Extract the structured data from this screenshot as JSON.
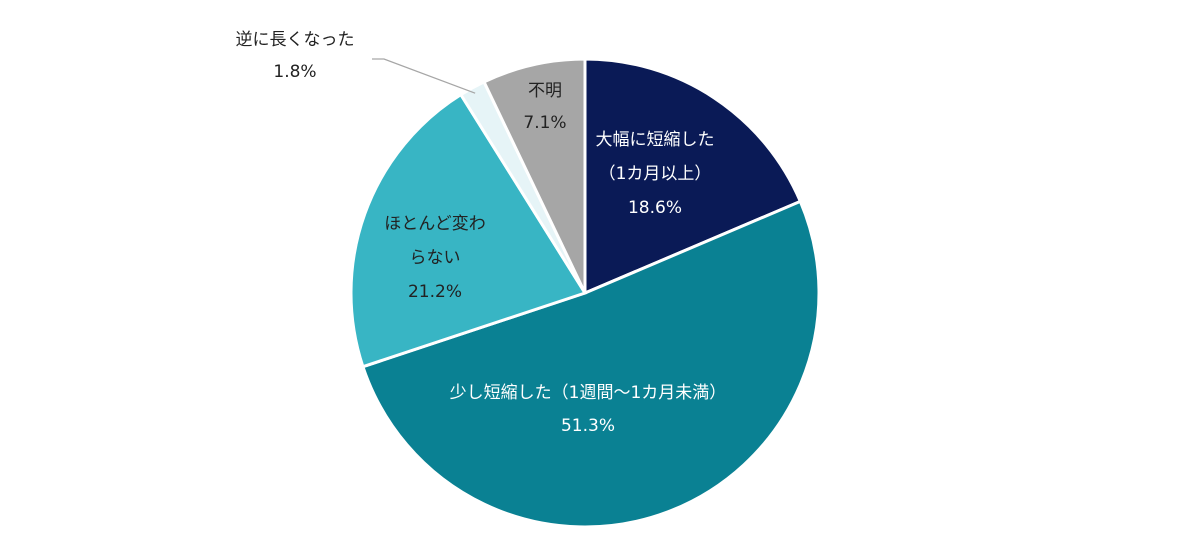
{
  "chart_data": {
    "type": "pie",
    "start_angle_deg": 0,
    "direction": "clockwise",
    "slices": [
      {
        "label_lines": [
          "大幅に短縮した",
          "（1カ月以上）"
        ],
        "value": 18.6,
        "value_label": "18.6%",
        "color": "#0a1a56",
        "label_color": "#ffffff"
      },
      {
        "label_lines": [
          "少し短縮した（1週間〜1カ月未満）"
        ],
        "value": 51.3,
        "value_label": "51.3%",
        "color": "#0a8193",
        "label_color": "#ffffff"
      },
      {
        "label_lines": [
          "ほとんど変わ",
          "らない"
        ],
        "value": 21.2,
        "value_label": "21.2%",
        "color": "#38b5c4",
        "label_color": "#222222"
      },
      {
        "label_lines": [
          "逆に長くなった"
        ],
        "value": 1.8,
        "value_label": "1.8%",
        "color": "#e6f4f7",
        "label_color": "#222222"
      },
      {
        "label_lines": [
          "不明"
        ],
        "value": 7.1,
        "value_label": "7.1%",
        "color": "#a6a6a6",
        "label_color": "#222222"
      }
    ]
  }
}
